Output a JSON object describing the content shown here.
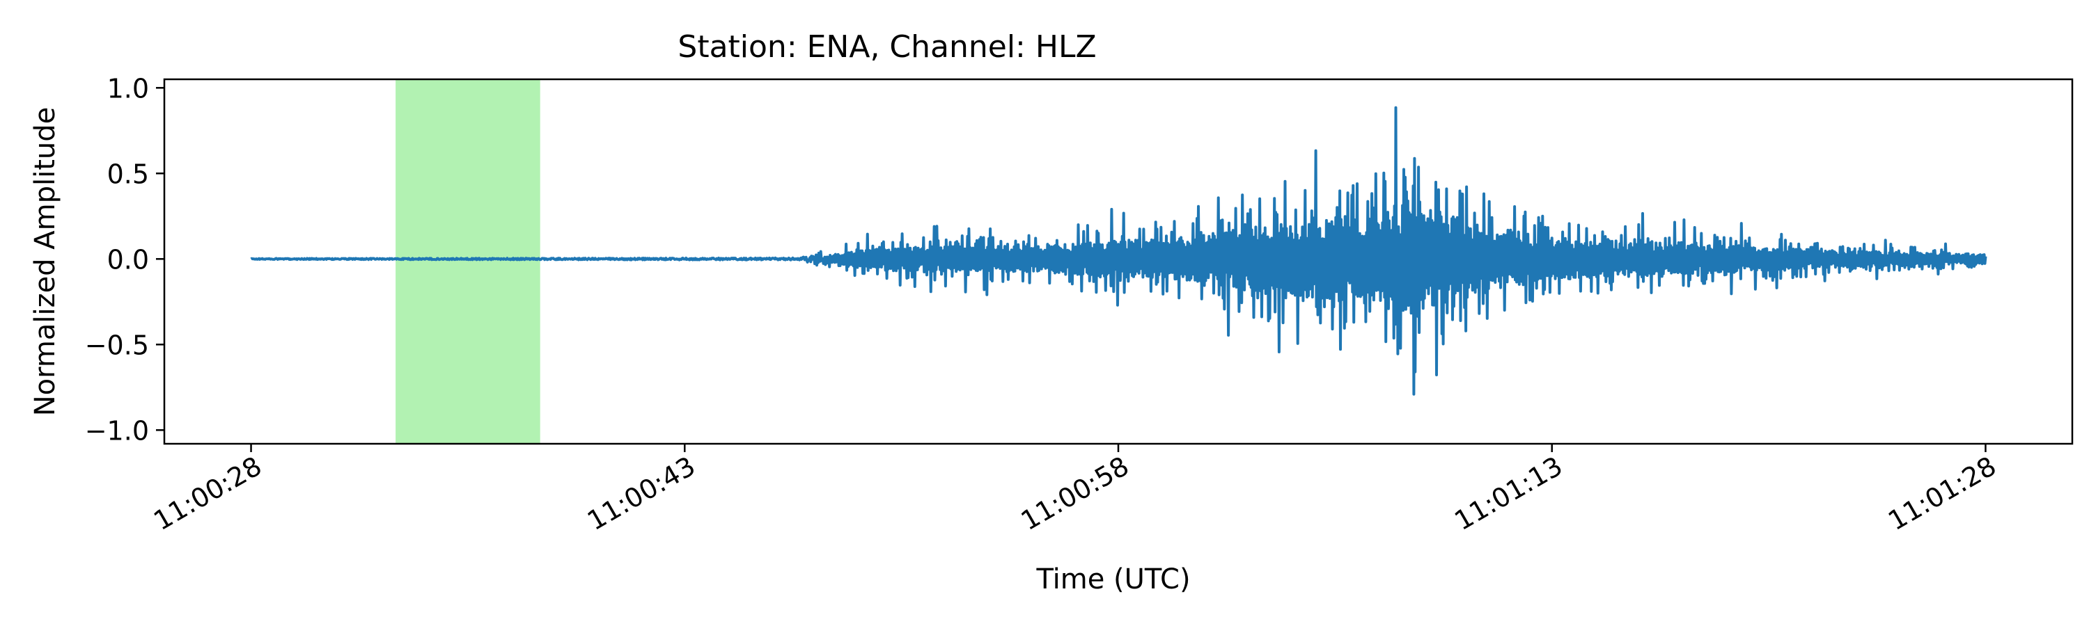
{
  "chart_data": {
    "type": "line",
    "title": "Station: ENA, Channel: HLZ",
    "xlabel": "Time (UTC)",
    "ylabel": "Normalized Amplitude",
    "xlim": [
      "11:00:25",
      "11:01:31"
    ],
    "ylim": [
      -1.08,
      1.05
    ],
    "x_ticks": [
      "11:00:28",
      "11:00:43",
      "11:00:58",
      "11:01:13",
      "11:01:28"
    ],
    "y_ticks": [
      1.0,
      0.5,
      0.0,
      -0.5,
      -1.0
    ],
    "y_tick_labels": [
      "1.0",
      "0.5",
      "0.0",
      "−0.5",
      "−1.0"
    ],
    "grid": false,
    "highlight": {
      "x_start": "11:00:33",
      "x_end": "11:00:38",
      "color": "#b2f2b2"
    },
    "series": [
      {
        "color": "#1f77b4",
        "x_start": "11:00:28",
        "x_end": "11:01:28",
        "envelope_time": [
          "11:00:28",
          "11:00:47",
          "11:00:48",
          "11:00:50",
          "11:00:55",
          "11:01:00",
          "11:01:03",
          "11:01:06",
          "11:01:08",
          "11:01:10",
          "11:01:13",
          "11:01:18",
          "11:01:23",
          "11:01:28"
        ],
        "envelope_amplitude": [
          0.003,
          0.006,
          0.06,
          0.2,
          0.22,
          0.35,
          0.55,
          0.72,
          0.95,
          0.65,
          0.35,
          0.24,
          0.14,
          0.08
        ]
      }
    ]
  }
}
